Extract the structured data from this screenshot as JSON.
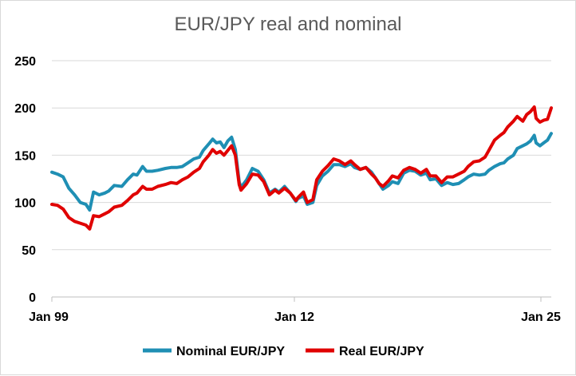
{
  "chart_data": {
    "type": "line",
    "title": "EUR/JPY real and nominal",
    "xlabel": "",
    "ylabel": "",
    "x_ticks": [
      "Jan 99",
      "Jan 12",
      "Jan 25"
    ],
    "xlim": [
      1999.0,
      2025.4
    ],
    "ylim": [
      0,
      250
    ],
    "y_ticks": [
      0,
      50,
      100,
      150,
      200,
      250
    ],
    "grid": "horizontal",
    "legend_position": "bottom",
    "series": [
      {
        "name": "Nominal EUR/JPY",
        "color": "#1f8fb4",
        "points": [
          [
            1999.0,
            132
          ],
          [
            1999.3,
            130
          ],
          [
            1999.6,
            127
          ],
          [
            1999.9,
            115
          ],
          [
            2000.2,
            108
          ],
          [
            2000.5,
            100
          ],
          [
            2000.8,
            98
          ],
          [
            2001.0,
            92
          ],
          [
            2001.2,
            111
          ],
          [
            2001.5,
            108
          ],
          [
            2001.8,
            110
          ],
          [
            2002.0,
            112
          ],
          [
            2002.3,
            118
          ],
          [
            2002.7,
            117
          ],
          [
            2003.0,
            124
          ],
          [
            2003.3,
            130
          ],
          [
            2003.5,
            129
          ],
          [
            2003.8,
            138
          ],
          [
            2004.0,
            133
          ],
          [
            2004.3,
            133
          ],
          [
            2004.6,
            134
          ],
          [
            2005.0,
            136
          ],
          [
            2005.3,
            137
          ],
          [
            2005.6,
            137
          ],
          [
            2005.9,
            138
          ],
          [
            2006.2,
            142
          ],
          [
            2006.5,
            146
          ],
          [
            2006.8,
            148
          ],
          [
            2007.0,
            155
          ],
          [
            2007.3,
            162
          ],
          [
            2007.5,
            167
          ],
          [
            2007.7,
            163
          ],
          [
            2007.9,
            164
          ],
          [
            2008.1,
            158
          ],
          [
            2008.3,
            165
          ],
          [
            2008.5,
            169
          ],
          [
            2008.7,
            156
          ],
          [
            2008.9,
            122
          ],
          [
            2009.0,
            116
          ],
          [
            2009.3,
            124
          ],
          [
            2009.6,
            136
          ],
          [
            2009.9,
            133
          ],
          [
            2010.2,
            124
          ],
          [
            2010.5,
            110
          ],
          [
            2010.8,
            114
          ],
          [
            2011.0,
            111
          ],
          [
            2011.3,
            117
          ],
          [
            2011.6,
            110
          ],
          [
            2011.9,
            101
          ],
          [
            2012.0,
            104
          ],
          [
            2012.3,
            107
          ],
          [
            2012.5,
            98
          ],
          [
            2012.8,
            100
          ],
          [
            2013.0,
            118
          ],
          [
            2013.3,
            128
          ],
          [
            2013.6,
            133
          ],
          [
            2013.9,
            140
          ],
          [
            2014.2,
            140
          ],
          [
            2014.5,
            138
          ],
          [
            2014.8,
            141
          ],
          [
            2015.0,
            137
          ],
          [
            2015.3,
            135
          ],
          [
            2015.6,
            137
          ],
          [
            2015.9,
            132
          ],
          [
            2016.1,
            126
          ],
          [
            2016.3,
            120
          ],
          [
            2016.5,
            114
          ],
          [
            2016.8,
            118
          ],
          [
            2017.0,
            122
          ],
          [
            2017.3,
            120
          ],
          [
            2017.6,
            131
          ],
          [
            2017.9,
            134
          ],
          [
            2018.2,
            133
          ],
          [
            2018.5,
            129
          ],
          [
            2018.8,
            131
          ],
          [
            2019.0,
            124
          ],
          [
            2019.3,
            125
          ],
          [
            2019.6,
            118
          ],
          [
            2019.9,
            121
          ],
          [
            2020.2,
            119
          ],
          [
            2020.5,
            120
          ],
          [
            2020.8,
            124
          ],
          [
            2021.0,
            127
          ],
          [
            2021.3,
            130
          ],
          [
            2021.6,
            129
          ],
          [
            2021.9,
            130
          ],
          [
            2022.1,
            134
          ],
          [
            2022.4,
            138
          ],
          [
            2022.7,
            141
          ],
          [
            2022.9,
            142
          ],
          [
            2023.1,
            146
          ],
          [
            2023.4,
            150
          ],
          [
            2023.6,
            157
          ],
          [
            2023.9,
            160
          ],
          [
            2024.1,
            162
          ],
          [
            2024.3,
            165
          ],
          [
            2024.5,
            171
          ],
          [
            2024.6,
            163
          ],
          [
            2024.8,
            160
          ],
          [
            2025.0,
            163
          ],
          [
            2025.2,
            166
          ],
          [
            2025.4,
            173
          ]
        ]
      },
      {
        "name": "Real EUR/JPY",
        "color": "#e00000",
        "points": [
          [
            1999.0,
            98
          ],
          [
            1999.3,
            97
          ],
          [
            1999.6,
            93
          ],
          [
            1999.9,
            84
          ],
          [
            2000.2,
            80
          ],
          [
            2000.5,
            78
          ],
          [
            2000.8,
            76
          ],
          [
            2001.0,
            72
          ],
          [
            2001.2,
            86
          ],
          [
            2001.5,
            85
          ],
          [
            2001.8,
            88
          ],
          [
            2002.0,
            90
          ],
          [
            2002.3,
            95
          ],
          [
            2002.7,
            97
          ],
          [
            2003.0,
            102
          ],
          [
            2003.3,
            108
          ],
          [
            2003.5,
            110
          ],
          [
            2003.8,
            117
          ],
          [
            2004.0,
            114
          ],
          [
            2004.3,
            114
          ],
          [
            2004.6,
            117
          ],
          [
            2005.0,
            119
          ],
          [
            2005.3,
            121
          ],
          [
            2005.6,
            120
          ],
          [
            2005.9,
            124
          ],
          [
            2006.2,
            127
          ],
          [
            2006.5,
            132
          ],
          [
            2006.8,
            136
          ],
          [
            2007.0,
            143
          ],
          [
            2007.3,
            150
          ],
          [
            2007.5,
            156
          ],
          [
            2007.7,
            152
          ],
          [
            2007.9,
            154
          ],
          [
            2008.1,
            150
          ],
          [
            2008.3,
            155
          ],
          [
            2008.5,
            160
          ],
          [
            2008.7,
            150
          ],
          [
            2008.9,
            119
          ],
          [
            2009.0,
            113
          ],
          [
            2009.3,
            120
          ],
          [
            2009.6,
            130
          ],
          [
            2009.9,
            129
          ],
          [
            2010.2,
            122
          ],
          [
            2010.5,
            108
          ],
          [
            2010.8,
            113
          ],
          [
            2011.0,
            110
          ],
          [
            2011.3,
            115
          ],
          [
            2011.6,
            110
          ],
          [
            2011.9,
            102
          ],
          [
            2012.0,
            105
          ],
          [
            2012.3,
            111
          ],
          [
            2012.5,
            100
          ],
          [
            2012.8,
            103
          ],
          [
            2013.0,
            124
          ],
          [
            2013.3,
            133
          ],
          [
            2013.6,
            139
          ],
          [
            2013.9,
            146
          ],
          [
            2014.2,
            144
          ],
          [
            2014.5,
            140
          ],
          [
            2014.8,
            144
          ],
          [
            2015.0,
            140
          ],
          [
            2015.3,
            135
          ],
          [
            2015.6,
            137
          ],
          [
            2015.9,
            130
          ],
          [
            2016.1,
            126
          ],
          [
            2016.3,
            120
          ],
          [
            2016.5,
            117
          ],
          [
            2016.8,
            123
          ],
          [
            2017.0,
            128
          ],
          [
            2017.3,
            126
          ],
          [
            2017.6,
            134
          ],
          [
            2017.9,
            137
          ],
          [
            2018.2,
            135
          ],
          [
            2018.5,
            131
          ],
          [
            2018.8,
            135
          ],
          [
            2019.0,
            128
          ],
          [
            2019.3,
            128
          ],
          [
            2019.6,
            121
          ],
          [
            2019.9,
            127
          ],
          [
            2020.2,
            127
          ],
          [
            2020.5,
            130
          ],
          [
            2020.8,
            133
          ],
          [
            2021.0,
            138
          ],
          [
            2021.3,
            143
          ],
          [
            2021.6,
            144
          ],
          [
            2021.9,
            148
          ],
          [
            2022.1,
            155
          ],
          [
            2022.4,
            166
          ],
          [
            2022.7,
            171
          ],
          [
            2022.9,
            174
          ],
          [
            2023.1,
            180
          ],
          [
            2023.4,
            186
          ],
          [
            2023.6,
            191
          ],
          [
            2023.9,
            186
          ],
          [
            2024.1,
            193
          ],
          [
            2024.3,
            196
          ],
          [
            2024.5,
            201
          ],
          [
            2024.6,
            189
          ],
          [
            2024.8,
            185
          ],
          [
            2025.0,
            187
          ],
          [
            2025.2,
            188
          ],
          [
            2025.4,
            200
          ]
        ]
      }
    ]
  }
}
